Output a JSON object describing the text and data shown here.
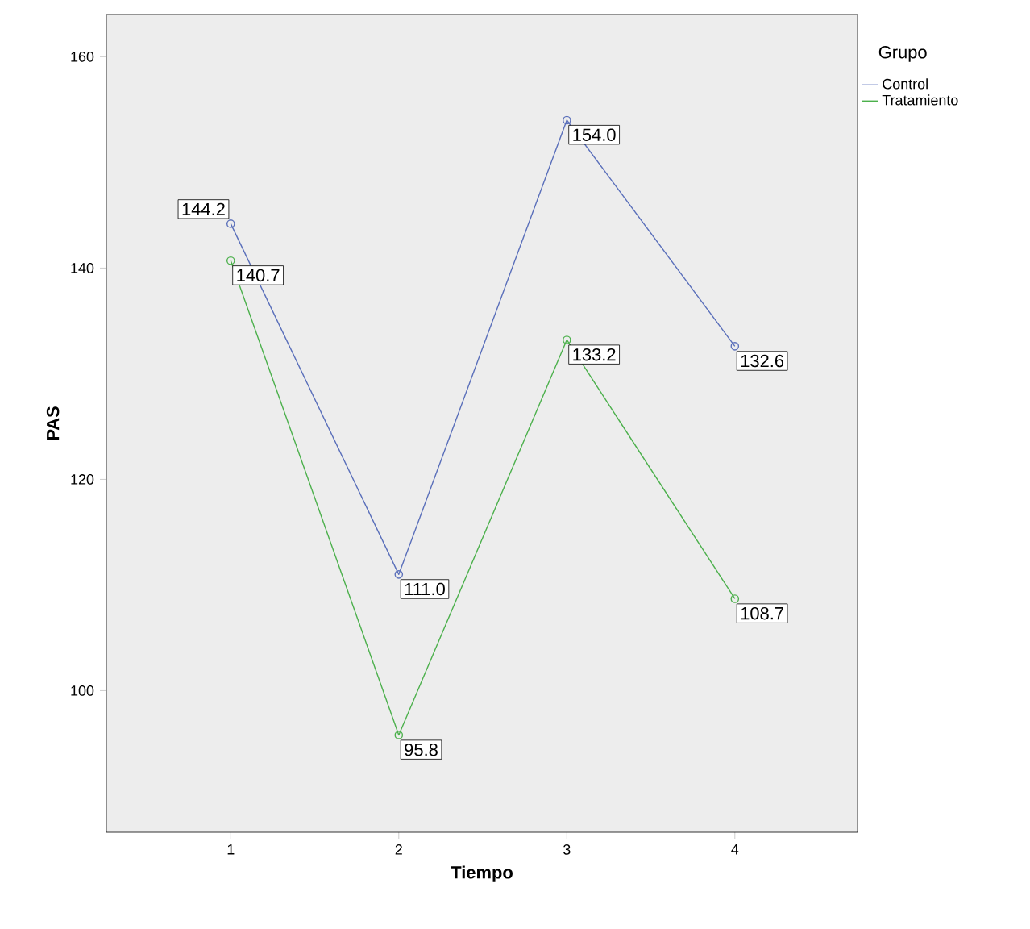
{
  "chart_data": {
    "type": "line",
    "xlabel": "Tiempo",
    "ylabel": "PAS",
    "legend_title": "Grupo",
    "categories": [
      "1",
      "2",
      "3",
      "4"
    ],
    "series": [
      {
        "name": "Control",
        "color": "#5a6fba",
        "values": [
          144.2,
          111.0,
          154.0,
          132.6
        ],
        "value_labels": [
          "144.2",
          "111.0",
          "154.0",
          "132.6"
        ]
      },
      {
        "name": "Tratamiento",
        "color": "#4cb04c",
        "values": [
          140.7,
          95.8,
          133.2,
          108.7
        ],
        "value_labels": [
          "140.7",
          "95.8",
          "133.2",
          "108.7"
        ]
      }
    ],
    "ylim": [
      86.6,
      164
    ],
    "yticks": [
      100,
      120,
      140,
      160
    ],
    "grid": false,
    "legend": "top right",
    "marker": "circle",
    "line_style": "solid"
  }
}
